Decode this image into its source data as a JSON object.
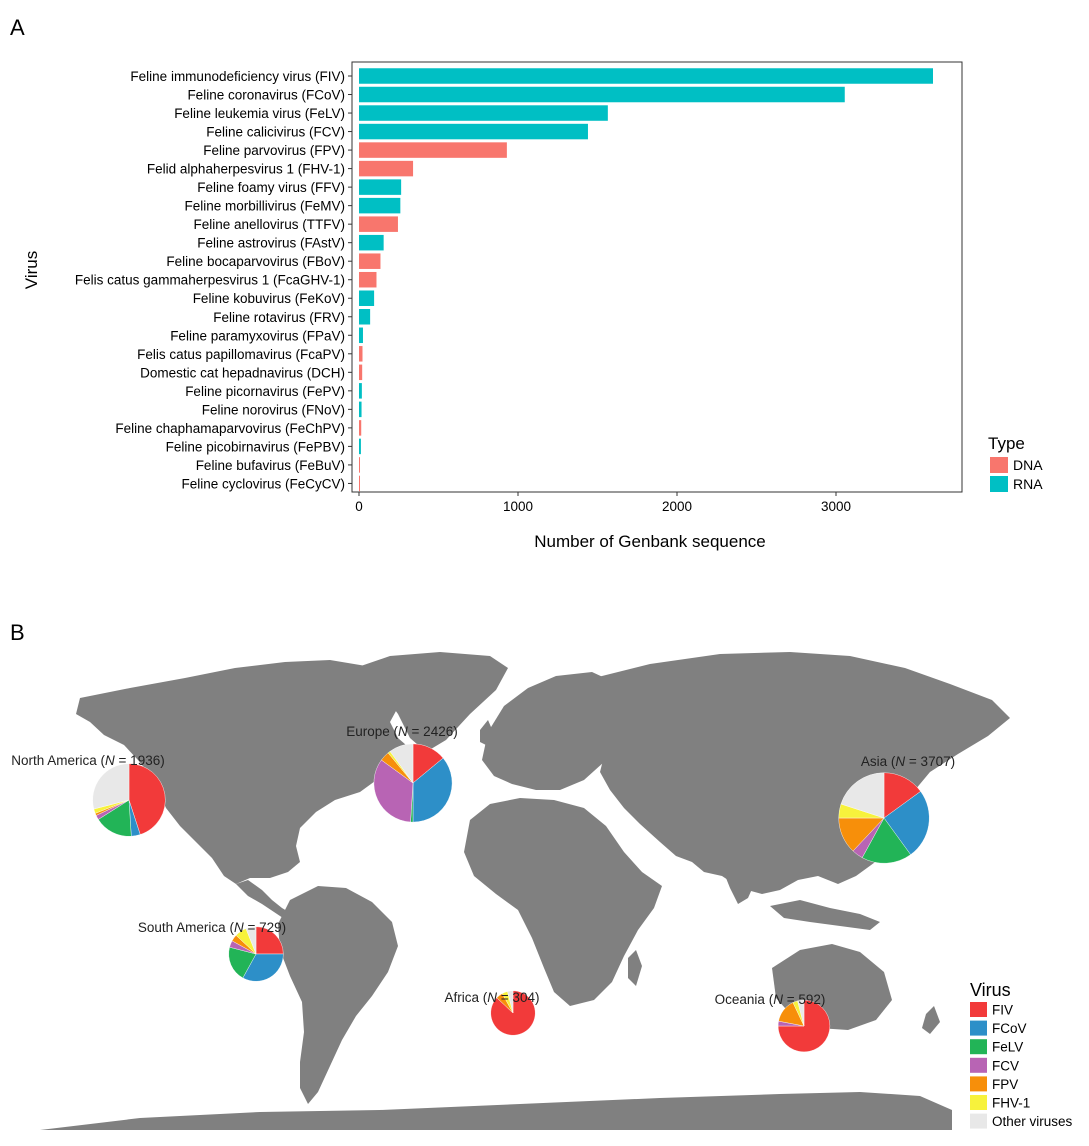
{
  "panels": {
    "a_label": "A",
    "b_label": "B"
  },
  "colors": {
    "DNA": "#F8766D",
    "RNA": "#00BFC4",
    "land": "#808080",
    "FIV": "#F23A3A",
    "FCoV": "#2D8FC8",
    "FeLV": "#22B457",
    "FCV": "#B864B4",
    "FPV": "#F78F0A",
    "FHV-1": "#F7F23C",
    "Other viruses": "#E8E8E8"
  },
  "chart_data": [
    {
      "type": "bar",
      "orientation": "horizontal",
      "xlabel": "Number of Genbank sequence",
      "ylabel": "Virus",
      "xlim": [
        0,
        3700
      ],
      "xticks": [
        0,
        1000,
        2000,
        3000
      ],
      "legend": {
        "title": "Type",
        "placement": "right",
        "entries": [
          "DNA",
          "RNA"
        ]
      },
      "categories": [
        "Feline immunodeficiency virus (FIV)",
        "Feline coronavirus (FCoV)",
        "Feline leukemia virus (FeLV)",
        "Feline calicivirus (FCV)",
        "Feline parvovirus (FPV)",
        "Felid alphaherpesvirus 1 (FHV-1)",
        "Feline foamy virus (FFV)",
        "Feline morbillivirus (FeMV)",
        "Feline anellovirus (TTFV)",
        "Feline astrovirus (FAstV)",
        "Feline bocaparvovirus (FBoV)",
        "Felis catus gammaherpesvirus 1 (FcaGHV-1)",
        "Feline kobuvirus (FeKoV)",
        "Feline rotavirus (FRV)",
        "Feline paramyxovirus (FPaV)",
        "Felis catus papillomavirus (FcaPV)",
        "Domestic cat hepadnavirus (DCH)",
        "Feline picornavirus (FePV)",
        "Feline norovirus (FNoV)",
        "Feline chaphamaparvovirus (FeChPV)",
        "Feline picobirnavirus (FePBV)",
        "Feline bufavirus (FeBuV)",
        "Feline cyclovirus (FeCyCV)"
      ],
      "values": [
        3610,
        3055,
        1565,
        1440,
        930,
        340,
        265,
        260,
        245,
        155,
        135,
        110,
        95,
        70,
        25,
        22,
        20,
        18,
        16,
        14,
        12,
        6,
        4
      ],
      "types": [
        "RNA",
        "RNA",
        "RNA",
        "RNA",
        "DNA",
        "DNA",
        "RNA",
        "RNA",
        "DNA",
        "RNA",
        "DNA",
        "DNA",
        "RNA",
        "RNA",
        "RNA",
        "DNA",
        "DNA",
        "RNA",
        "RNA",
        "DNA",
        "RNA",
        "DNA",
        "DNA"
      ]
    },
    {
      "type": "pie",
      "subtype": "map-pies",
      "legend": {
        "title": "Virus",
        "placement": "bottom-right",
        "entries": [
          "FIV",
          "FCoV",
          "FeLV",
          "FCV",
          "FPV",
          "FHV-1",
          "Other viruses"
        ]
      },
      "regions": [
        {
          "name": "North America",
          "n": 1936,
          "label_pre": "North America (",
          "label_n": "N",
          "label_post": " = 1936)",
          "slices": {
            "FIV": 45,
            "FCoV": 4,
            "FeLV": 17,
            "FCV": 2,
            "FPV": 1,
            "FHV-1": 2,
            "Other viruses": 29
          }
        },
        {
          "name": "Europe",
          "n": 2426,
          "label_pre": "Europe (",
          "label_n": "N",
          "label_post": " = 2426)",
          "slices": {
            "FIV": 14,
            "FCoV": 36,
            "FeLV": 1,
            "FCV": 34,
            "FPV": 4,
            "FHV-1": 1,
            "Other viruses": 10
          }
        },
        {
          "name": "Asia",
          "n": 3707,
          "label_pre": "Asia (",
          "label_n": "N",
          "label_post": " = 3707)",
          "slices": {
            "FIV": 15,
            "FCoV": 25,
            "FeLV": 18,
            "FCV": 4,
            "FPV": 13,
            "FHV-1": 5,
            "Other viruses": 20
          }
        },
        {
          "name": "South America",
          "n": 729,
          "label_pre": "South America (",
          "label_n": "N",
          "label_post": " = 729)",
          "slices": {
            "FIV": 25,
            "FCoV": 33,
            "FeLV": 21,
            "FCV": 4,
            "FPV": 4,
            "FHV-1": 7,
            "Other viruses": 6
          }
        },
        {
          "name": "Africa",
          "n": 304,
          "label_pre": "Africa (",
          "label_n": "N",
          "label_post": " = 304)",
          "slices": {
            "FIV": 87,
            "FCoV": 0,
            "FeLV": 0,
            "FCV": 0,
            "FPV": 5,
            "FHV-1": 4,
            "Other viruses": 4
          }
        },
        {
          "name": "Oceania",
          "n": 592,
          "label_pre": "Oceania (",
          "label_n": "N",
          "label_post": " = 592)",
          "slices": {
            "FIV": 75,
            "FCoV": 0,
            "FeLV": 0,
            "FCV": 3,
            "FPV": 15,
            "FHV-1": 3,
            "Other viruses": 4
          }
        }
      ]
    }
  ]
}
